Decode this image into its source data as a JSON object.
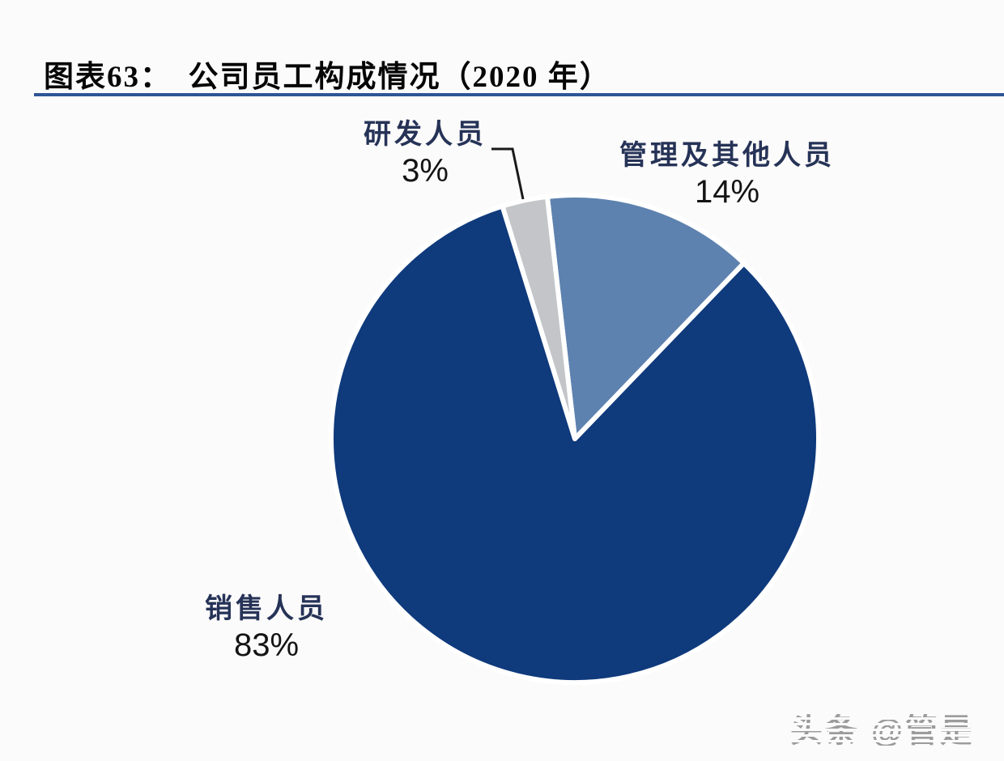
{
  "page": {
    "background": "#FCFBFB"
  },
  "header": {
    "title": "图表63：　公司员工构成情况（2020 年）",
    "underline_color": "#2E5596"
  },
  "chart_data": {
    "type": "pie",
    "title": "公司员工构成情况（2020 年）",
    "legend": "none",
    "label_style": "outside labels with percentage; leader line on smallest slice",
    "slices": [
      {
        "id": "management",
        "label": "管理及其他人员",
        "value": 14,
        "pct_text": "14%",
        "color": "#5E82AF"
      },
      {
        "id": "sales",
        "label": "销售人员",
        "value": 83,
        "pct_text": "83%",
        "color": "#0F3A7C"
      },
      {
        "id": "rnd",
        "label": "研发人员",
        "value": 3,
        "pct_text": "3%",
        "color": "#C3C5C9"
      }
    ],
    "start_angle_deg": -6.5,
    "clockwise": true,
    "separator_color": "#FFFFFF",
    "separator_width": 6,
    "center": [
      710,
      542
    ],
    "radius": 301,
    "leader_line": {
      "color": "#1A1A1A",
      "width": 3,
      "points": [
        [
          607,
          184
        ],
        [
          633,
          184
        ],
        [
          646,
          246
        ]
      ]
    }
  },
  "watermark": {
    "text": "头条 @管是",
    "color": "#9C9C9C"
  }
}
